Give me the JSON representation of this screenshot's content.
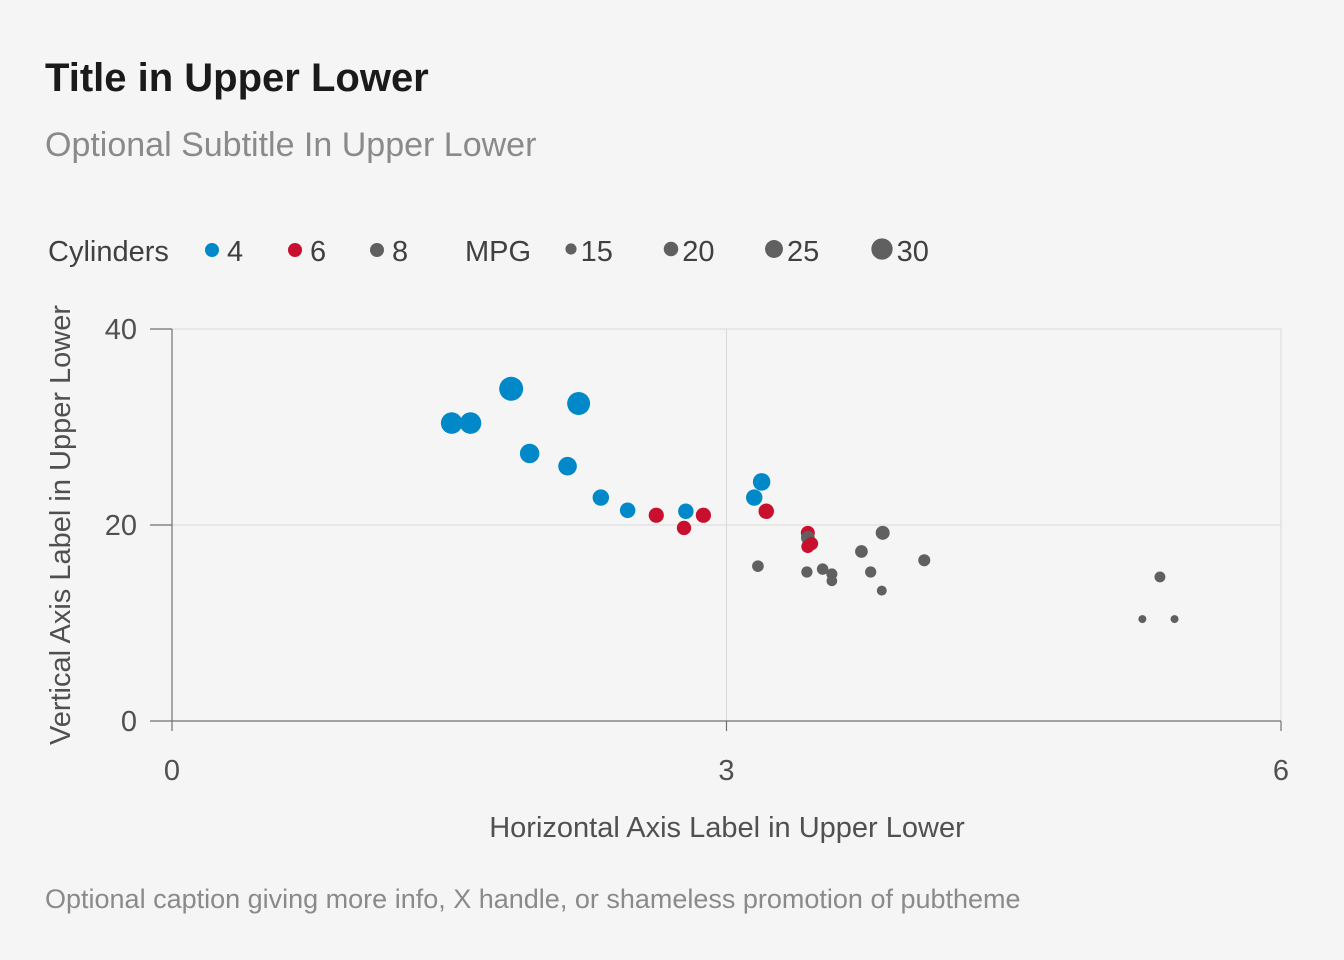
{
  "title": "Title in Upper Lower",
  "subtitle": "Optional Subtitle In Upper Lower",
  "caption": "Optional caption giving more info, X handle, or shameless promotion of pubtheme",
  "chart_data": {
    "type": "scatter",
    "title": "Title in Upper Lower",
    "subtitle": "Optional Subtitle In Upper Lower",
    "xlabel": "Horizontal Axis Label in Upper Lower",
    "ylabel": "Vertical Axis Label in Upper Lower",
    "xlim": [
      0,
      6
    ],
    "ylim": [
      0,
      40
    ],
    "x_ticks": [
      0,
      3,
      6
    ],
    "x_tick_labels": [
      "0",
      "3",
      "6"
    ],
    "y_ticks": [
      0,
      20,
      40
    ],
    "y_tick_labels": [
      "0",
      "20",
      "40"
    ],
    "grid": true,
    "legend_position": "top",
    "color_legend": {
      "title": "Cylinders",
      "items": [
        {
          "label": "4",
          "color": "#0088c8"
        },
        {
          "label": "6",
          "color": "#c8102e"
        },
        {
          "label": "8",
          "color": "#606060"
        }
      ]
    },
    "size_legend": {
      "title": "MPG",
      "items": [
        {
          "label": "15",
          "value": 15
        },
        {
          "label": "20",
          "value": 20
        },
        {
          "label": "25",
          "value": 25
        },
        {
          "label": "30",
          "value": 30
        }
      ]
    },
    "series": [
      {
        "name": "4",
        "color": "#0088c8",
        "points": [
          {
            "x": 2.32,
            "y": 22.8
          },
          {
            "x": 3.19,
            "y": 24.4
          },
          {
            "x": 3.15,
            "y": 22.8
          },
          {
            "x": 2.2,
            "y": 32.4
          },
          {
            "x": 1.615,
            "y": 30.4
          },
          {
            "x": 1.835,
            "y": 33.9
          },
          {
            "x": 2.465,
            "y": 21.5
          },
          {
            "x": 1.935,
            "y": 27.3
          },
          {
            "x": 2.14,
            "y": 26.0
          },
          {
            "x": 1.513,
            "y": 30.4
          },
          {
            "x": 2.78,
            "y": 21.4
          }
        ]
      },
      {
        "name": "6",
        "color": "#c8102e",
        "points": [
          {
            "x": 2.62,
            "y": 21.0
          },
          {
            "x": 2.875,
            "y": 21.0
          },
          {
            "x": 3.215,
            "y": 21.4
          },
          {
            "x": 3.46,
            "y": 18.1
          },
          {
            "x": 3.44,
            "y": 19.2
          },
          {
            "x": 3.44,
            "y": 17.8
          },
          {
            "x": 2.77,
            "y": 19.7
          }
        ]
      },
      {
        "name": "8",
        "color": "#606060",
        "points": [
          {
            "x": 3.44,
            "y": 18.7
          },
          {
            "x": 3.57,
            "y": 14.3
          },
          {
            "x": 4.07,
            "y": 16.4
          },
          {
            "x": 3.73,
            "y": 17.3
          },
          {
            "x": 3.78,
            "y": 15.2
          },
          {
            "x": 5.25,
            "y": 10.4
          },
          {
            "x": 5.424,
            "y": 10.4
          },
          {
            "x": 5.345,
            "y": 14.7
          },
          {
            "x": 3.52,
            "y": 15.5
          },
          {
            "x": 3.435,
            "y": 15.2
          },
          {
            "x": 3.84,
            "y": 13.3
          },
          {
            "x": 3.845,
            "y": 19.2
          },
          {
            "x": 3.17,
            "y": 15.8
          },
          {
            "x": 3.57,
            "y": 15.0
          }
        ]
      }
    ]
  }
}
